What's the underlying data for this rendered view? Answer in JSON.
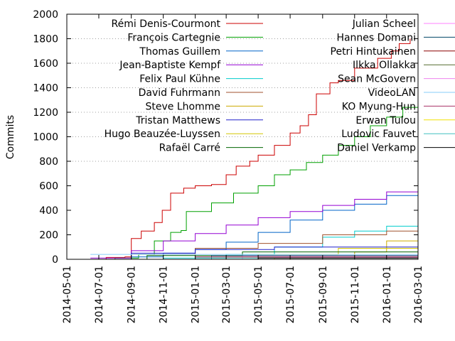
{
  "chart_data": {
    "type": "line",
    "title": "",
    "xlabel": "",
    "ylabel": "Commits",
    "ylim": [
      0,
      2000
    ],
    "xlim": [
      "2014-05-01",
      "2016-03-01"
    ],
    "yticks": [
      "0",
      "200",
      "400",
      "600",
      "800",
      "1000",
      "1200",
      "1400",
      "1600",
      "1800",
      "2000"
    ],
    "xticks": [
      "2014-05-01",
      "2014-07-01",
      "2014-09-01",
      "2014-11-01",
      "2015-01-01",
      "2015-03-01",
      "2015-05-01",
      "2015-07-01",
      "2015-09-01",
      "2015-11-01",
      "2016-01-01",
      "2016-03-01"
    ],
    "grid": "horizontal dotted at 800-2000",
    "legend_placement": "top, two columns",
    "series": [
      {
        "name": "Rémi Denis-Courmont",
        "color": "#cc0000",
        "points": [
          [
            "2014-06-15",
            0
          ],
          [
            "2014-07-15",
            15
          ],
          [
            "2014-08-20",
            20
          ],
          [
            "2014-09-01",
            170
          ],
          [
            "2014-09-20",
            230
          ],
          [
            "2014-10-15",
            300
          ],
          [
            "2014-10-30",
            400
          ],
          [
            "2014-11-15",
            540
          ],
          [
            "2014-12-10",
            580
          ],
          [
            "2015-01-01",
            600
          ],
          [
            "2015-02-01",
            610
          ],
          [
            "2015-03-01",
            690
          ],
          [
            "2015-03-20",
            760
          ],
          [
            "2015-04-15",
            800
          ],
          [
            "2015-05-01",
            850
          ],
          [
            "2015-06-01",
            930
          ],
          [
            "2015-07-01",
            1030
          ],
          [
            "2015-07-20",
            1090
          ],
          [
            "2015-08-05",
            1180
          ],
          [
            "2015-08-20",
            1350
          ],
          [
            "2015-09-15",
            1440
          ],
          [
            "2015-10-01",
            1460
          ],
          [
            "2015-11-01",
            1560
          ],
          [
            "2015-12-15",
            1640
          ],
          [
            "2016-01-10",
            1700
          ],
          [
            "2016-01-25",
            1760
          ],
          [
            "2016-02-15",
            1800
          ]
        ]
      },
      {
        "name": "François Cartegnie",
        "color": "#00a000",
        "points": [
          [
            "2014-06-15",
            0
          ],
          [
            "2014-08-01",
            10
          ],
          [
            "2014-09-15",
            40
          ],
          [
            "2014-10-15",
            150
          ],
          [
            "2014-11-15",
            220
          ],
          [
            "2014-12-05",
            235
          ],
          [
            "2014-12-15",
            390
          ],
          [
            "2015-02-01",
            460
          ],
          [
            "2015-03-15",
            540
          ],
          [
            "2015-05-01",
            600
          ],
          [
            "2015-06-01",
            690
          ],
          [
            "2015-07-01",
            730
          ],
          [
            "2015-08-01",
            790
          ],
          [
            "2015-09-01",
            850
          ],
          [
            "2015-10-01",
            930
          ],
          [
            "2015-11-01",
            1000
          ],
          [
            "2015-12-01",
            1090
          ],
          [
            "2016-01-01",
            1160
          ],
          [
            "2016-02-01",
            1240
          ],
          [
            "2016-03-01",
            1310
          ]
        ]
      },
      {
        "name": "Thomas Guillem",
        "color": "#0064c8",
        "points": [
          [
            "2014-06-15",
            0
          ],
          [
            "2014-09-01",
            20
          ],
          [
            "2014-11-01",
            50
          ],
          [
            "2015-01-01",
            80
          ],
          [
            "2015-03-01",
            140
          ],
          [
            "2015-05-01",
            220
          ],
          [
            "2015-07-01",
            320
          ],
          [
            "2015-09-01",
            400
          ],
          [
            "2015-11-01",
            450
          ],
          [
            "2016-01-01",
            520
          ],
          [
            "2016-03-01",
            590
          ]
        ]
      },
      {
        "name": "Jean-Baptiste Kempf",
        "color": "#9400d3",
        "points": [
          [
            "2014-06-15",
            10
          ],
          [
            "2014-09-01",
            70
          ],
          [
            "2014-11-01",
            150
          ],
          [
            "2015-01-01",
            210
          ],
          [
            "2015-03-01",
            280
          ],
          [
            "2015-05-01",
            340
          ],
          [
            "2015-07-01",
            390
          ],
          [
            "2015-09-01",
            440
          ],
          [
            "2015-11-01",
            490
          ],
          [
            "2016-01-01",
            550
          ],
          [
            "2016-03-01",
            600
          ]
        ]
      },
      {
        "name": "Felix Paul Kühne",
        "color": "#00cccc",
        "points": [
          [
            "2014-06-15",
            0
          ],
          [
            "2014-11-01",
            10
          ],
          [
            "2015-03-01",
            40
          ],
          [
            "2015-06-01",
            100
          ],
          [
            "2015-09-01",
            180
          ],
          [
            "2015-11-01",
            230
          ],
          [
            "2016-01-01",
            270
          ],
          [
            "2016-03-01",
            310
          ]
        ]
      },
      {
        "name": "David Fuhrmann",
        "color": "#a0522d",
        "points": [
          [
            "2014-06-15",
            0
          ],
          [
            "2014-09-01",
            40
          ],
          [
            "2015-01-01",
            90
          ],
          [
            "2015-05-01",
            130
          ],
          [
            "2015-09-01",
            200
          ],
          [
            "2016-01-01",
            230
          ],
          [
            "2016-03-01",
            260
          ]
        ]
      },
      {
        "name": "Steve Lhomme",
        "color": "#ccaa00",
        "points": [
          [
            "2014-06-15",
            0
          ],
          [
            "2015-07-01",
            20
          ],
          [
            "2015-11-01",
            60
          ],
          [
            "2016-01-01",
            150
          ],
          [
            "2016-03-01",
            230
          ]
        ]
      },
      {
        "name": "Tristan Matthews",
        "color": "#2020cc",
        "points": [
          [
            "2014-06-15",
            0
          ],
          [
            "2014-09-01",
            50
          ],
          [
            "2015-01-01",
            80
          ],
          [
            "2015-06-01",
            100
          ],
          [
            "2016-03-01",
            110
          ]
        ]
      },
      {
        "name": "Hugo Beauzée-Luyssen",
        "color": "#d4c500",
        "points": [
          [
            "2014-06-15",
            0
          ],
          [
            "2015-05-01",
            40
          ],
          [
            "2015-10-01",
            90
          ],
          [
            "2016-03-01",
            150
          ]
        ]
      },
      {
        "name": "Rafaël Carré",
        "color": "#006400",
        "points": [
          [
            "2014-06-15",
            0
          ],
          [
            "2014-10-01",
            30
          ],
          [
            "2015-04-01",
            60
          ],
          [
            "2016-03-01",
            70
          ]
        ]
      },
      {
        "name": "Julian Scheel",
        "color": "#ff80ff",
        "points": [
          [
            "2014-06-15",
            0
          ],
          [
            "2015-04-01",
            30
          ],
          [
            "2016-03-01",
            60
          ]
        ]
      },
      {
        "name": "Hannes Domani",
        "color": "#004466",
        "points": [
          [
            "2014-06-15",
            0
          ],
          [
            "2015-02-01",
            30
          ],
          [
            "2016-03-01",
            70
          ]
        ]
      },
      {
        "name": "Petri Hintukainen",
        "color": "#8b0000",
        "points": [
          [
            "2014-06-15",
            0
          ],
          [
            "2015-03-01",
            20
          ],
          [
            "2016-03-01",
            80
          ]
        ]
      },
      {
        "name": "Ilkka Ollakka",
        "color": "#556b2f",
        "points": [
          [
            "2014-06-15",
            0
          ],
          [
            "2015-01-01",
            20
          ],
          [
            "2016-03-01",
            50
          ]
        ]
      },
      {
        "name": "Sean McGovern",
        "color": "#ee82ee",
        "points": [
          [
            "2014-06-15",
            0
          ],
          [
            "2015-06-01",
            15
          ],
          [
            "2016-03-01",
            35
          ]
        ]
      },
      {
        "name": "VideoLAN",
        "color": "#87cefa",
        "points": [
          [
            "2014-06-15",
            40
          ],
          [
            "2016-03-01",
            40
          ]
        ]
      },
      {
        "name": "KO Myung-Hun",
        "color": "#aa3366",
        "points": [
          [
            "2014-06-15",
            0
          ],
          [
            "2015-01-01",
            20
          ],
          [
            "2016-03-01",
            30
          ]
        ]
      },
      {
        "name": "Erwan Tulou",
        "color": "#f0e000",
        "points": [
          [
            "2014-06-15",
            0
          ],
          [
            "2015-06-01",
            10
          ],
          [
            "2016-03-01",
            25
          ]
        ]
      },
      {
        "name": "Ludovic Fauvet",
        "color": "#40c0c0",
        "points": [
          [
            "2014-06-15",
            0
          ],
          [
            "2015-01-01",
            10
          ],
          [
            "2016-03-01",
            15
          ]
        ]
      },
      {
        "name": "Daniel Verkamp",
        "color": "#000000",
        "points": [
          [
            "2014-06-15",
            0
          ],
          [
            "2015-05-01",
            10
          ],
          [
            "2016-03-01",
            20
          ]
        ]
      }
    ]
  }
}
